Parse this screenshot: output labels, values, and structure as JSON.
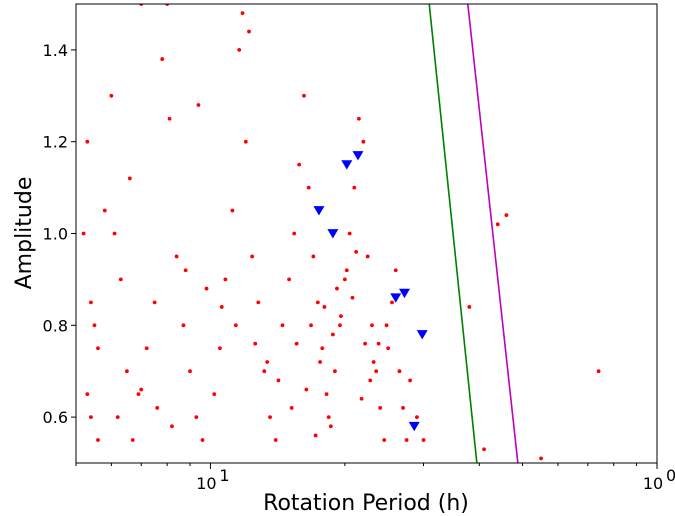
{
  "chart_data": {
    "type": "scatter",
    "title": "",
    "xlabel": "Rotation Period (h)",
    "ylabel": "Amplitude",
    "xscale": "log",
    "xlim": [
      5,
      100
    ],
    "ylim": [
      0.5,
      1.5
    ],
    "grid": false,
    "legend": "none",
    "x_ticks": [
      {
        "value": 10,
        "label": "10",
        "exp": "1"
      },
      {
        "value": 100,
        "label": "10",
        "exp": "0"
      }
    ],
    "y_ticks": [
      0.6,
      0.8,
      1.0,
      1.2,
      1.4
    ],
    "y_tick_labels": [
      "0.6",
      "0.8",
      "1.0",
      "1.2",
      "1.4"
    ],
    "colors": {
      "dots": "#ff0000",
      "triangles": "#0000ff",
      "green_line": "#008000",
      "magenta_line": "#bf00bf"
    },
    "series": [
      {
        "marker": "dot",
        "color": "#ff0000",
        "points": [
          [
            5.2,
            1.0
          ],
          [
            5.3,
            1.2
          ],
          [
            5.4,
            0.85
          ],
          [
            5.5,
            0.8
          ],
          [
            5.6,
            0.75
          ],
          [
            5.3,
            0.65
          ],
          [
            5.4,
            0.6
          ],
          [
            5.6,
            0.55
          ],
          [
            5.8,
            1.05
          ],
          [
            6.0,
            1.3
          ],
          [
            6.1,
            1.0
          ],
          [
            6.3,
            0.9
          ],
          [
            6.5,
            0.7
          ],
          [
            6.2,
            0.6
          ],
          [
            6.7,
            0.55
          ],
          [
            6.9,
            0.65
          ],
          [
            7.2,
            0.75
          ],
          [
            7.5,
            0.85
          ],
          [
            7.8,
            1.38
          ],
          [
            8.1,
            1.25
          ],
          [
            8.4,
            0.95
          ],
          [
            8.7,
            0.8
          ],
          [
            9.0,
            0.7
          ],
          [
            9.3,
            0.6
          ],
          [
            9.6,
            0.55
          ],
          [
            10.2,
            0.65
          ],
          [
            10.5,
            0.75
          ],
          [
            10.8,
            0.9
          ],
          [
            11.2,
            1.05
          ],
          [
            11.6,
            1.4
          ],
          [
            12.0,
            1.2
          ],
          [
            12.4,
            0.95
          ],
          [
            12.8,
            0.85
          ],
          [
            13.2,
            0.7
          ],
          [
            13.6,
            0.6
          ],
          [
            14.0,
            0.55
          ],
          [
            14.5,
            0.8
          ],
          [
            15.0,
            0.9
          ],
          [
            15.4,
            1.0
          ],
          [
            15.8,
            1.15
          ],
          [
            16.2,
            1.3
          ],
          [
            16.6,
            1.1
          ],
          [
            17.0,
            0.95
          ],
          [
            17.4,
            0.85
          ],
          [
            17.8,
            0.75
          ],
          [
            18.2,
            0.65
          ],
          [
            18.6,
            0.58
          ],
          [
            19.0,
            0.7
          ],
          [
            19.5,
            0.8
          ],
          [
            20.0,
            0.9
          ],
          [
            20.5,
            1.0
          ],
          [
            21.0,
            1.1
          ],
          [
            21.5,
            1.25
          ],
          [
            22.0,
            1.2
          ],
          [
            22.5,
            0.95
          ],
          [
            23.0,
            0.8
          ],
          [
            23.5,
            0.7
          ],
          [
            24.0,
            0.62
          ],
          [
            24.5,
            0.55
          ],
          [
            25.0,
            0.75
          ],
          [
            25.5,
            0.85
          ],
          [
            26.0,
            0.92
          ],
          [
            26.5,
            0.7
          ],
          [
            27.0,
            0.62
          ],
          [
            27.5,
            0.55
          ],
          [
            28.0,
            0.68
          ],
          [
            29.0,
            0.6
          ],
          [
            30.0,
            0.55
          ],
          [
            38.0,
            0.84
          ],
          [
            41.0,
            0.53
          ],
          [
            44.0,
            1.02
          ],
          [
            46.0,
            1.04
          ],
          [
            55.0,
            0.51
          ],
          [
            74.0,
            0.7
          ],
          [
            7.0,
            1.5
          ],
          [
            8.0,
            1.5
          ],
          [
            11.8,
            1.48
          ],
          [
            12.2,
            1.44
          ],
          [
            9.4,
            1.28
          ],
          [
            6.6,
            1.12
          ],
          [
            15.2,
            0.62
          ],
          [
            16.4,
            0.66
          ],
          [
            17.6,
            0.72
          ],
          [
            18.8,
            0.78
          ],
          [
            19.6,
            0.82
          ],
          [
            20.8,
            0.86
          ],
          [
            21.8,
            0.64
          ],
          [
            22.8,
            0.68
          ],
          [
            23.8,
            0.76
          ],
          [
            24.8,
            0.8
          ],
          [
            14.2,
            0.68
          ],
          [
            13.4,
            0.72
          ],
          [
            12.6,
            0.76
          ],
          [
            11.4,
            0.8
          ],
          [
            10.6,
            0.84
          ],
          [
            9.8,
            0.88
          ],
          [
            8.8,
            0.92
          ],
          [
            8.2,
            0.58
          ],
          [
            7.6,
            0.62
          ],
          [
            7.0,
            0.66
          ],
          [
            15.6,
            0.76
          ],
          [
            16.8,
            0.8
          ],
          [
            18.0,
            0.84
          ],
          [
            19.2,
            0.88
          ],
          [
            20.2,
            0.92
          ],
          [
            21.2,
            0.96
          ],
          [
            22.2,
            0.76
          ],
          [
            23.2,
            0.72
          ],
          [
            17.2,
            0.56
          ],
          [
            18.4,
            0.6
          ]
        ]
      },
      {
        "marker": "triangle",
        "color": "#0000ff",
        "points": [
          [
            17.5,
            1.05
          ],
          [
            18.8,
            1.0
          ],
          [
            20.2,
            1.15
          ],
          [
            21.4,
            1.17
          ],
          [
            26.0,
            0.86
          ],
          [
            27.2,
            0.87
          ],
          [
            29.8,
            0.78
          ],
          [
            28.6,
            0.58
          ]
        ]
      }
    ],
    "lines": [
      {
        "color": "#008000",
        "points": [
          [
            30.9,
            1.5
          ],
          [
            39.5,
            0.5
          ]
        ]
      },
      {
        "color": "#bf00bf",
        "points": [
          [
            37.7,
            1.5
          ],
          [
            48.8,
            0.5
          ]
        ]
      }
    ]
  }
}
